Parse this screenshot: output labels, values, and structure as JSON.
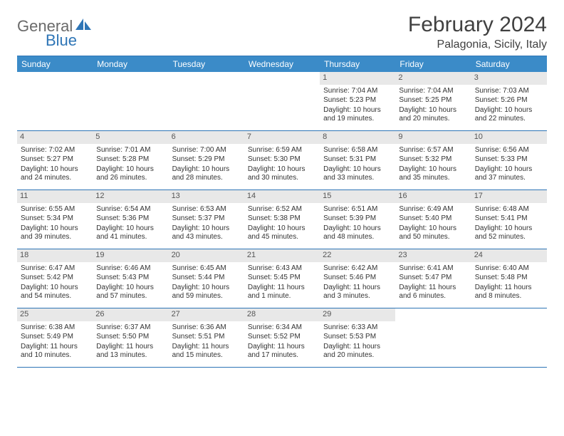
{
  "brand": {
    "part1": "General",
    "part2": "Blue"
  },
  "title": "February 2024",
  "location": "Palagonia, Sicily, Italy",
  "colors": {
    "header_bg": "#3b8bc8",
    "border": "#2e75b6",
    "daynum_bg": "#e8e8e8",
    "logo_gray": "#6a6a6a",
    "logo_blue": "#2e75b6",
    "text": "#333333"
  },
  "days_of_week": [
    "Sunday",
    "Monday",
    "Tuesday",
    "Wednesday",
    "Thursday",
    "Friday",
    "Saturday"
  ],
  "weeks": [
    [
      null,
      null,
      null,
      null,
      {
        "n": "1",
        "sr": "7:04 AM",
        "ss": "5:23 PM",
        "dl": "10 hours and 19 minutes."
      },
      {
        "n": "2",
        "sr": "7:04 AM",
        "ss": "5:25 PM",
        "dl": "10 hours and 20 minutes."
      },
      {
        "n": "3",
        "sr": "7:03 AM",
        "ss": "5:26 PM",
        "dl": "10 hours and 22 minutes."
      }
    ],
    [
      {
        "n": "4",
        "sr": "7:02 AM",
        "ss": "5:27 PM",
        "dl": "10 hours and 24 minutes."
      },
      {
        "n": "5",
        "sr": "7:01 AM",
        "ss": "5:28 PM",
        "dl": "10 hours and 26 minutes."
      },
      {
        "n": "6",
        "sr": "7:00 AM",
        "ss": "5:29 PM",
        "dl": "10 hours and 28 minutes."
      },
      {
        "n": "7",
        "sr": "6:59 AM",
        "ss": "5:30 PM",
        "dl": "10 hours and 30 minutes."
      },
      {
        "n": "8",
        "sr": "6:58 AM",
        "ss": "5:31 PM",
        "dl": "10 hours and 33 minutes."
      },
      {
        "n": "9",
        "sr": "6:57 AM",
        "ss": "5:32 PM",
        "dl": "10 hours and 35 minutes."
      },
      {
        "n": "10",
        "sr": "6:56 AM",
        "ss": "5:33 PM",
        "dl": "10 hours and 37 minutes."
      }
    ],
    [
      {
        "n": "11",
        "sr": "6:55 AM",
        "ss": "5:34 PM",
        "dl": "10 hours and 39 minutes."
      },
      {
        "n": "12",
        "sr": "6:54 AM",
        "ss": "5:36 PM",
        "dl": "10 hours and 41 minutes."
      },
      {
        "n": "13",
        "sr": "6:53 AM",
        "ss": "5:37 PM",
        "dl": "10 hours and 43 minutes."
      },
      {
        "n": "14",
        "sr": "6:52 AM",
        "ss": "5:38 PM",
        "dl": "10 hours and 45 minutes."
      },
      {
        "n": "15",
        "sr": "6:51 AM",
        "ss": "5:39 PM",
        "dl": "10 hours and 48 minutes."
      },
      {
        "n": "16",
        "sr": "6:49 AM",
        "ss": "5:40 PM",
        "dl": "10 hours and 50 minutes."
      },
      {
        "n": "17",
        "sr": "6:48 AM",
        "ss": "5:41 PM",
        "dl": "10 hours and 52 minutes."
      }
    ],
    [
      {
        "n": "18",
        "sr": "6:47 AM",
        "ss": "5:42 PM",
        "dl": "10 hours and 54 minutes."
      },
      {
        "n": "19",
        "sr": "6:46 AM",
        "ss": "5:43 PM",
        "dl": "10 hours and 57 minutes."
      },
      {
        "n": "20",
        "sr": "6:45 AM",
        "ss": "5:44 PM",
        "dl": "10 hours and 59 minutes."
      },
      {
        "n": "21",
        "sr": "6:43 AM",
        "ss": "5:45 PM",
        "dl": "11 hours and 1 minute."
      },
      {
        "n": "22",
        "sr": "6:42 AM",
        "ss": "5:46 PM",
        "dl": "11 hours and 3 minutes."
      },
      {
        "n": "23",
        "sr": "6:41 AM",
        "ss": "5:47 PM",
        "dl": "11 hours and 6 minutes."
      },
      {
        "n": "24",
        "sr": "6:40 AM",
        "ss": "5:48 PM",
        "dl": "11 hours and 8 minutes."
      }
    ],
    [
      {
        "n": "25",
        "sr": "6:38 AM",
        "ss": "5:49 PM",
        "dl": "11 hours and 10 minutes."
      },
      {
        "n": "26",
        "sr": "6:37 AM",
        "ss": "5:50 PM",
        "dl": "11 hours and 13 minutes."
      },
      {
        "n": "27",
        "sr": "6:36 AM",
        "ss": "5:51 PM",
        "dl": "11 hours and 15 minutes."
      },
      {
        "n": "28",
        "sr": "6:34 AM",
        "ss": "5:52 PM",
        "dl": "11 hours and 17 minutes."
      },
      {
        "n": "29",
        "sr": "6:33 AM",
        "ss": "5:53 PM",
        "dl": "11 hours and 20 minutes."
      },
      null,
      null
    ]
  ],
  "labels": {
    "sunrise": "Sunrise:",
    "sunset": "Sunset:",
    "daylight": "Daylight:"
  }
}
